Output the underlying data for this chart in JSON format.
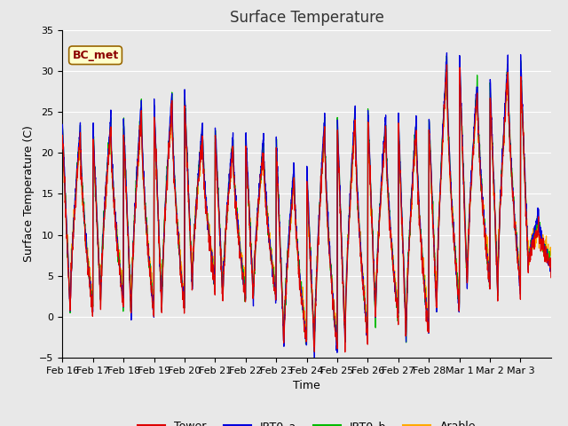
{
  "title": "Surface Temperature",
  "ylabel": "Surface Temperature (C)",
  "xlabel": "Time",
  "annotation": "BC_met",
  "ylim": [
    -5,
    35
  ],
  "xtick_labels": [
    "Feb 16",
    "Feb 17",
    "Feb 18",
    "Feb 19",
    "Feb 20",
    "Feb 21",
    "Feb 22",
    "Feb 23",
    "Feb 24",
    "Feb 25",
    "Feb 26",
    "Feb 27",
    "Feb 28",
    "Mar 1",
    "Mar 2",
    "Mar 3"
  ],
  "line_colors": {
    "Tower": "#dd0000",
    "IRT0_a": "#0000dd",
    "IRT0_b": "#00bb00",
    "Arable": "#ffaa00"
  },
  "plot_bg_color": "#e8e8e8",
  "fig_bg_color": "#e8e8e8",
  "grid_color": "#ffffff",
  "title_fontsize": 12,
  "axis_label_fontsize": 9,
  "tick_fontsize": 8,
  "linewidth": 0.9,
  "num_days": 16,
  "pts_per_day": 144,
  "daily_peaks": [
    22.0,
    23.0,
    25.0,
    26.0,
    22.0,
    21.0,
    20.5,
    17.0,
    23.0,
    24.0,
    23.0,
    23.0,
    30.5,
    27.5,
    30.0,
    11.0
  ],
  "daily_troughs": [
    0.5,
    1.5,
    0.0,
    0.5,
    3.5,
    2.0,
    2.0,
    -3.5,
    -4.5,
    -3.0,
    -0.5,
    -2.5,
    0.5,
    3.5,
    3.0,
    6.0
  ],
  "peak_hour": 14,
  "trough_hour": 6,
  "annotation_color": "#8b0000",
  "annotation_bg": "#ffffcc",
  "annotation_edge": "#996600"
}
